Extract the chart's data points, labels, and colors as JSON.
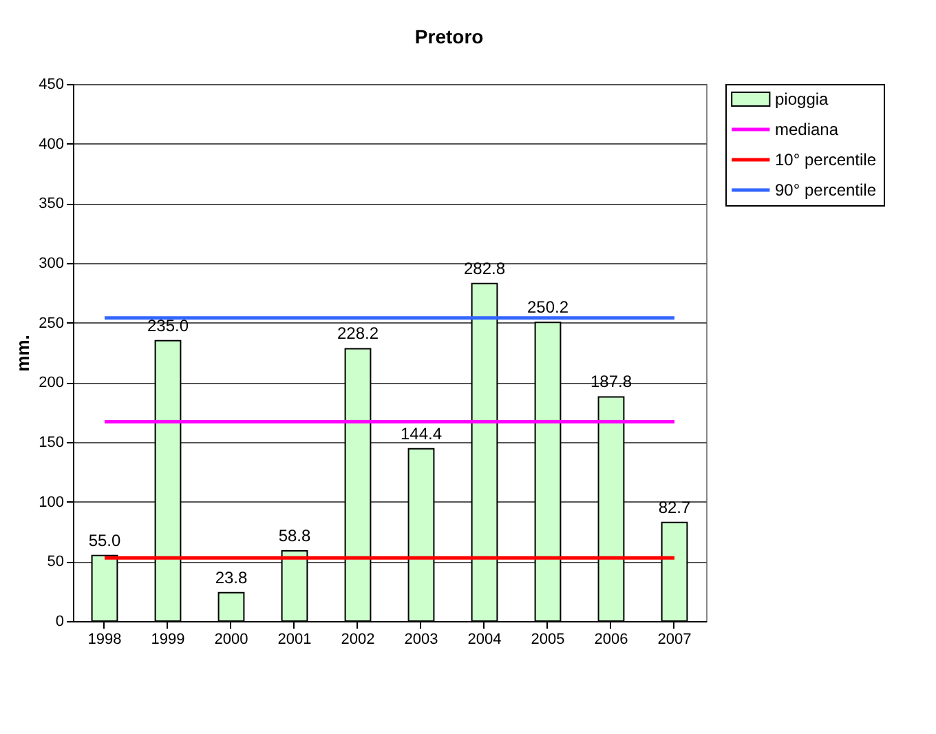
{
  "chart_data": {
    "type": "bar",
    "title": "Pretoro",
    "ylabel": "mm.",
    "categories": [
      "1998",
      "1999",
      "2000",
      "2001",
      "2002",
      "2003",
      "2004",
      "2005",
      "2006",
      "2007"
    ],
    "series": [
      {
        "name": "pioggia",
        "color": "#ccffcc",
        "values": [
          55.0,
          235.0,
          23.8,
          58.8,
          228.2,
          144.4,
          282.8,
          250.2,
          187.8,
          82.7
        ],
        "value_labels": [
          "55.0",
          "235.0",
          "23.8",
          "58.8",
          "228.2",
          "144.4",
          "282.8",
          "250.2",
          "187.8",
          "82.7"
        ]
      },
      {
        "name": "mediana",
        "type": "line",
        "color": "#ff00ff",
        "values": [
          167,
          167,
          167,
          167,
          167,
          167,
          167,
          167,
          167,
          167
        ]
      },
      {
        "name": "10° percentile",
        "type": "line",
        "color": "#ff0000",
        "values": [
          53,
          53,
          53,
          53,
          53,
          53,
          53,
          53,
          53,
          53
        ]
      },
      {
        "name": "90° percentile",
        "type": "line",
        "color": "#3366ff",
        "values": [
          254,
          254,
          254,
          254,
          254,
          254,
          254,
          254,
          254,
          254
        ]
      }
    ],
    "ylim": [
      0,
      450
    ],
    "yticks": [
      0,
      50,
      100,
      150,
      200,
      250,
      300,
      350,
      400,
      450
    ],
    "grid": "y",
    "legend": "right"
  }
}
